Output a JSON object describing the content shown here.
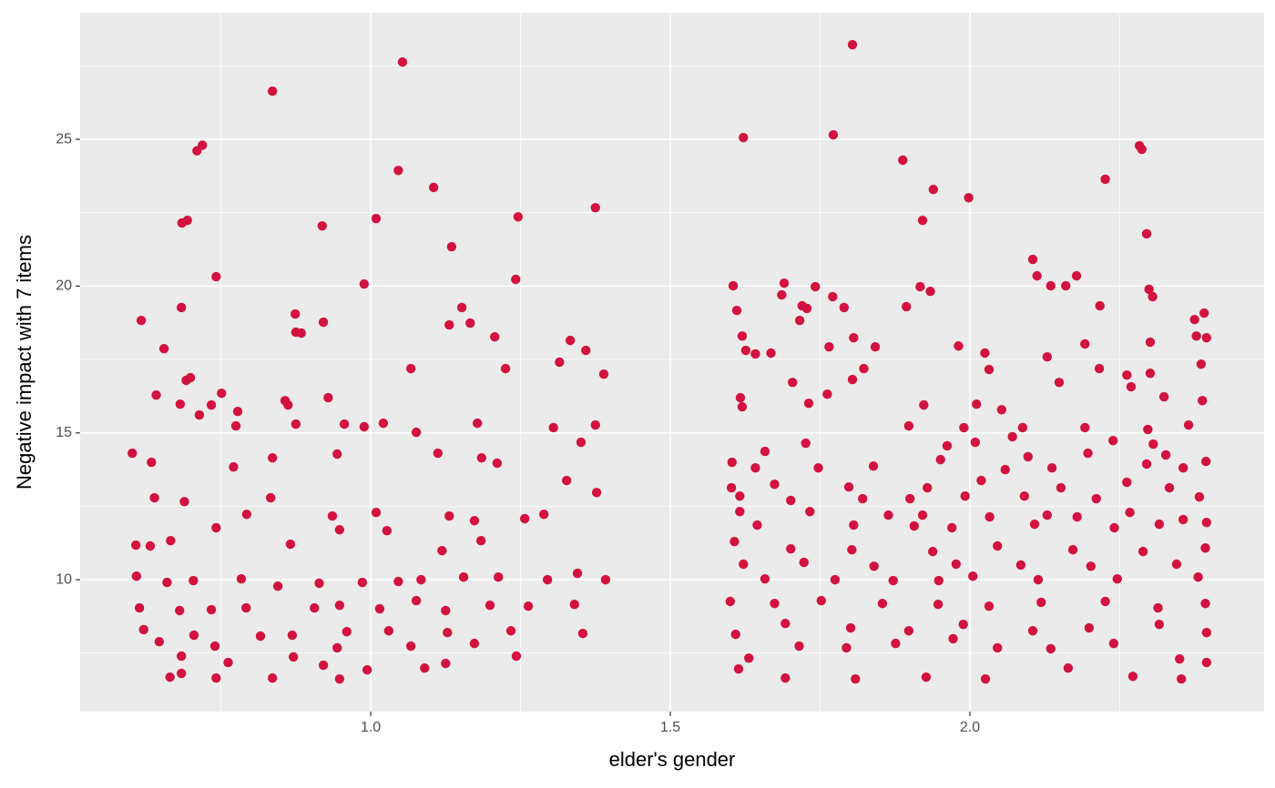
{
  "chart_data": {
    "type": "scatter",
    "x_label": "elder's gender",
    "y_label": "Negative impact with 7 items",
    "xlim": [
      0.515,
      2.491
    ],
    "ylim": [
      5.51,
      29.31
    ],
    "xticks": [
      {
        "value": 1.0,
        "label": "1.0"
      },
      {
        "value": 1.5,
        "label": "1.5"
      },
      {
        "value": 2.0,
        "label": "2.0"
      }
    ],
    "yticks": [
      10,
      15,
      20,
      25
    ],
    "x_minor_grid": [
      0.75,
      1.25,
      1.75,
      2.25
    ],
    "y_minor_grid": [
      7.5,
      12.5,
      17.5,
      22.5,
      27.5
    ],
    "grid": true,
    "color": "#d2133f",
    "x": [
      1.053,
      0.836,
      0.719,
      0.71,
      1.046,
      1.105,
      0.694,
      0.685,
      1.009,
      1.246,
      1.375,
      0.919,
      1.135,
      0.742,
      1.242,
      0.989,
      0.617,
      0.684,
      0.874,
      0.875,
      0.884,
      0.921,
      1.152,
      1.131,
      1.166,
      1.207,
      1.333,
      1.359,
      0.655,
      1.067,
      1.225,
      1.315,
      1.389,
      0.751,
      0.642,
      0.857,
      0.862,
      0.929,
      0.699,
      0.692,
      0.682,
      0.734,
      0.778,
      0.714,
      0.775,
      0.875,
      0.956,
      0.989,
      1.021,
      1.076,
      1.178,
      1.305,
      1.375,
      0.602,
      0.634,
      0.836,
      0.944,
      1.112,
      1.185,
      1.211,
      1.351,
      0.771,
      0.639,
      0.689,
      0.793,
      0.833,
      0.936,
      1.009,
      1.131,
      1.173,
      1.257,
      1.289,
      1.327,
      1.377,
      0.608,
      0.632,
      0.666,
      0.742,
      0.866,
      0.948,
      1.027,
      1.119,
      1.184,
      0.609,
      0.66,
      0.704,
      0.784,
      0.845,
      0.914,
      0.986,
      1.046,
      1.084,
      1.155,
      1.213,
      1.295,
      1.345,
      1.392,
      0.614,
      0.681,
      0.734,
      0.792,
      0.906,
      0.948,
      1.015,
      1.076,
      1.125,
      1.199,
      1.263,
      1.34,
      0.621,
      0.705,
      0.816,
      0.869,
      0.96,
      1.03,
      1.128,
      1.234,
      1.354,
      0.647,
      0.74,
      0.871,
      0.944,
      1.067,
      1.173,
      0.684,
      0.762,
      0.921,
      0.994,
      1.09,
      1.125,
      0.665,
      0.836,
      0.742,
      0.948,
      0.684,
      1.243,
      1.804,
      1.622,
      1.772,
      1.888,
      2.283,
      2.287,
      2.226,
      1.939,
      1.998,
      1.921,
      2.295,
      2.105,
      2.112,
      1.605,
      1.69,
      1.742,
      1.917,
      1.934,
      2.135,
      2.16,
      2.178,
      2.299,
      2.305,
      2.217,
      1.611,
      1.686,
      1.72,
      1.728,
      1.771,
      1.79,
      1.894,
      2.391,
      2.375,
      1.62,
      1.716,
      1.806,
      2.192,
      2.301,
      2.395,
      2.378,
      1.981,
      2.025,
      1.765,
      1.842,
      1.626,
      1.642,
      1.668,
      2.129,
      1.823,
      2.032,
      2.216,
      2.301,
      2.386,
      1.704,
      1.804,
      2.149,
      2.262,
      2.269,
      1.617,
      1.62,
      1.731,
      1.762,
      1.923,
      2.388,
      2.324,
      2.011,
      2.053,
      1.898,
      1.99,
      2.088,
      2.192,
      2.297,
      2.365,
      1.962,
      2.071,
      2.239,
      2.306,
      1.658,
      1.726,
      1.951,
      2.009,
      2.097,
      2.197,
      2.327,
      2.394,
      1.603,
      1.642,
      1.747,
      1.839,
      2.059,
      2.137,
      2.295,
      2.356,
      1.602,
      1.674,
      1.798,
      1.929,
      2.019,
      2.152,
      2.262,
      2.333,
      1.616,
      1.701,
      1.821,
      1.9,
      1.992,
      2.091,
      2.211,
      2.383,
      1.616,
      1.733,
      1.864,
      1.921,
      2.033,
      2.129,
      2.179,
      2.267,
      2.356,
      1.645,
      1.806,
      1.907,
      1.97,
      2.108,
      2.241,
      2.316,
      2.395,
      1.607,
      1.701,
      1.803,
      1.938,
      2.046,
      2.172,
      2.289,
      2.393,
      1.622,
      1.723,
      1.84,
      1.977,
      2.085,
      2.202,
      2.345,
      1.658,
      1.775,
      1.872,
      1.948,
      2.005,
      2.114,
      2.246,
      2.381,
      1.6,
      1.674,
      1.752,
      1.854,
      1.947,
      2.032,
      2.119,
      2.226,
      2.314,
      2.393,
      1.609,
      1.692,
      1.801,
      1.898,
      1.989,
      2.105,
      2.199,
      2.316,
      2.395,
      1.631,
      1.715,
      1.794,
      1.876,
      1.972,
      2.046,
      2.135,
      2.24,
      2.35,
      1.614,
      1.692,
      1.809,
      1.927,
      2.026,
      2.164,
      2.272,
      2.353,
      2.395
    ],
    "values": [
      27.63,
      26.64,
      24.8,
      24.61,
      23.94,
      23.36,
      22.24,
      22.15,
      22.3,
      22.36,
      22.67,
      22.05,
      21.34,
      20.32,
      20.23,
      20.07,
      18.83,
      19.27,
      19.05,
      18.43,
      18.4,
      18.77,
      19.27,
      18.68,
      18.74,
      18.27,
      18.15,
      17.81,
      17.87,
      17.19,
      17.19,
      17.41,
      17.0,
      16.35,
      16.29,
      16.1,
      15.95,
      16.2,
      16.88,
      16.79,
      15.98,
      15.95,
      15.73,
      15.61,
      15.24,
      15.3,
      15.3,
      15.21,
      15.33,
      15.02,
      15.33,
      15.18,
      15.27,
      14.31,
      14.0,
      14.15,
      14.28,
      14.31,
      14.15,
      13.97,
      14.68,
      13.84,
      12.79,
      12.66,
      12.23,
      12.79,
      12.17,
      12.29,
      12.17,
      12.01,
      12.08,
      12.23,
      13.38,
      12.97,
      11.18,
      11.15,
      11.33,
      11.77,
      11.21,
      11.7,
      11.67,
      10.99,
      11.33,
      10.12,
      9.91,
      9.97,
      10.03,
      9.78,
      9.88,
      9.91,
      9.94,
      10.0,
      10.09,
      10.09,
      10.0,
      10.22,
      10.0,
      9.04,
      8.95,
      8.98,
      9.04,
      9.04,
      9.13,
      9.01,
      9.29,
      8.95,
      9.13,
      9.1,
      9.16,
      8.3,
      8.11,
      8.08,
      8.11,
      8.23,
      8.26,
      8.2,
      8.26,
      8.17,
      7.89,
      7.74,
      7.37,
      7.68,
      7.74,
      7.83,
      7.4,
      7.18,
      7.09,
      6.93,
      6.99,
      7.15,
      6.68,
      6.65,
      6.65,
      6.62,
      6.81,
      7.4,
      28.22,
      25.06,
      25.15,
      24.29,
      24.78,
      24.66,
      23.64,
      23.29,
      23.01,
      22.24,
      21.78,
      20.91,
      20.35,
      20.01,
      20.1,
      19.98,
      19.98,
      19.82,
      20.01,
      20.01,
      20.35,
      19.89,
      19.64,
      19.33,
      19.17,
      19.7,
      19.33,
      19.24,
      19.64,
      19.27,
      19.3,
      19.08,
      18.86,
      18.3,
      18.83,
      18.24,
      18.03,
      18.09,
      18.24,
      18.3,
      17.96,
      17.72,
      17.93,
      17.93,
      17.81,
      17.69,
      17.72,
      17.59,
      17.19,
      17.16,
      17.19,
      17.03,
      17.34,
      16.72,
      16.82,
      16.72,
      16.97,
      16.57,
      16.2,
      15.89,
      16.01,
      16.32,
      15.95,
      16.1,
      16.23,
      15.98,
      15.79,
      15.24,
      15.18,
      15.18,
      15.18,
      15.12,
      15.27,
      14.56,
      14.87,
      14.74,
      14.62,
      14.37,
      14.65,
      14.09,
      14.68,
      14.19,
      14.31,
      14.25,
      14.03,
      14.0,
      13.81,
      13.81,
      13.87,
      13.75,
      13.81,
      13.94,
      13.81,
      13.13,
      13.25,
      13.16,
      13.13,
      13.38,
      13.13,
      13.32,
      13.13,
      12.85,
      12.7,
      12.76,
      12.76,
      12.85,
      12.85,
      12.76,
      12.82,
      12.32,
      12.32,
      12.2,
      12.2,
      12.14,
      12.2,
      12.14,
      12.29,
      12.05,
      11.86,
      11.86,
      11.83,
      11.77,
      11.89,
      11.77,
      11.89,
      11.95,
      11.3,
      11.05,
      11.02,
      10.96,
      11.15,
      11.02,
      10.96,
      11.08,
      10.53,
      10.59,
      10.46,
      10.53,
      10.5,
      10.46,
      10.53,
      10.03,
      10.0,
      9.97,
      9.97,
      10.12,
      10.0,
      10.03,
      10.09,
      9.26,
      9.19,
      9.29,
      9.19,
      9.16,
      9.1,
      9.23,
      9.26,
      9.04,
      9.19,
      8.14,
      8.51,
      8.36,
      8.26,
      8.48,
      8.26,
      8.36,
      8.48,
      8.2,
      7.33,
      7.74,
      7.68,
      7.83,
      7.99,
      7.68,
      7.65,
      7.83,
      7.3,
      6.96,
      6.65,
      6.62,
      6.68,
      6.62,
      6.99,
      6.71,
      6.62,
      7.18
    ]
  }
}
